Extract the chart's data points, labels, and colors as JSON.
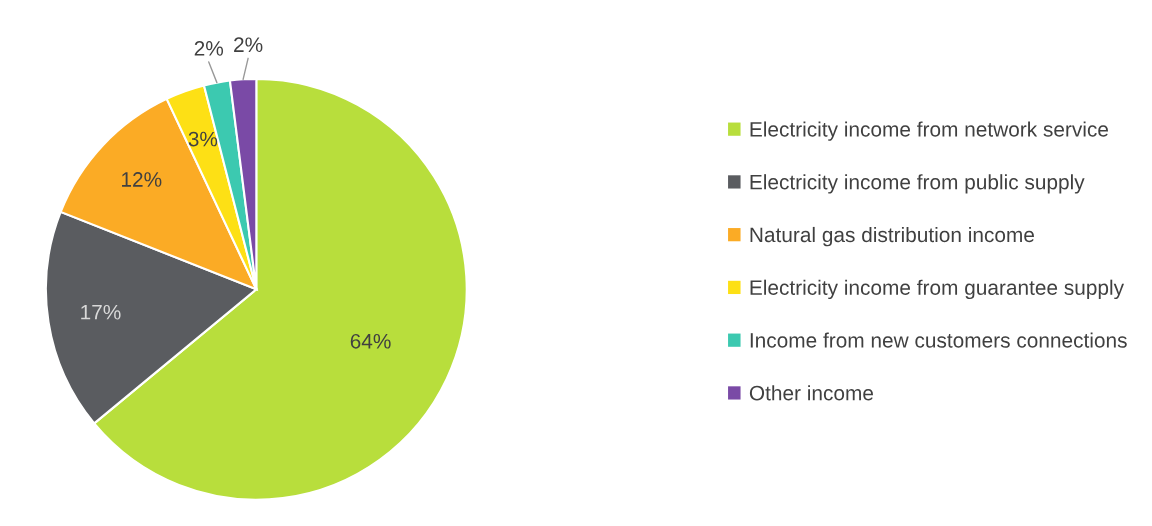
{
  "chart_data": {
    "type": "pie",
    "categories": [
      "Electricity income from network service",
      "Electricity income from public supply",
      "Natural gas distribution income",
      "Electricity income from guarantee supply",
      "Income from new customers connections",
      "Other income"
    ],
    "values": [
      64,
      17,
      12,
      3,
      2,
      2
    ],
    "colors": [
      "#b8de3c",
      "#5a5c60",
      "#fbab25",
      "#fde015",
      "#3cc9b0",
      "#7a4aa6"
    ],
    "value_labels": [
      "64%",
      "17%",
      "12%",
      "3%",
      "2%",
      "2%"
    ],
    "legend": "right"
  }
}
